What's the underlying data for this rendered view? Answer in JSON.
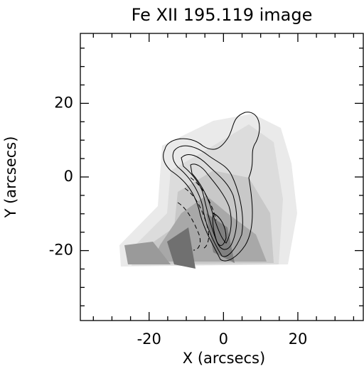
{
  "chart_data": {
    "type": "contour",
    "title": "Fe XII 195.119 image",
    "xlabel": "X (arcsecs)",
    "ylabel": "Y (arcsecs)",
    "xlim": [
      -38.5,
      37.6
    ],
    "ylim": [
      -39,
      39
    ],
    "xticks": [
      -20,
      0,
      20
    ],
    "yticks": [
      -20,
      0,
      20
    ],
    "xminorticks": [
      -35,
      -30,
      -25,
      -15,
      -10,
      -5,
      5,
      10,
      15,
      25,
      30,
      35
    ],
    "yminorticks": [
      -35,
      -30,
      -25,
      -15,
      -10,
      -5,
      5,
      10,
      15,
      25,
      30,
      35
    ]
  }
}
